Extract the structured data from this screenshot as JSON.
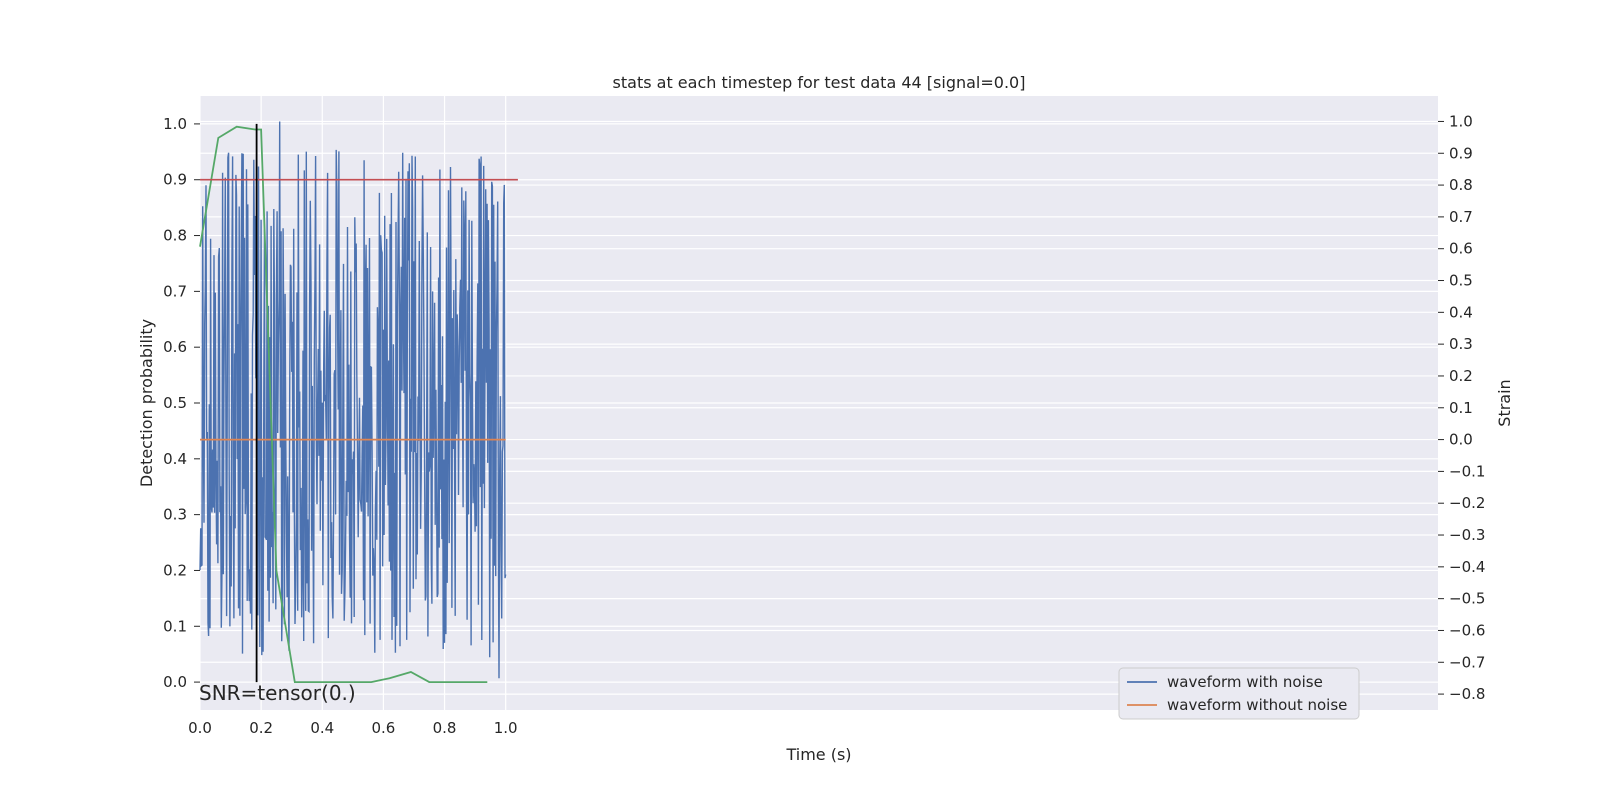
{
  "chart_data": {
    "type": "line",
    "title": "stats at each timestep for test data 44 [signal=0.0]",
    "xlabel": "Time (s)",
    "ylabel_left": "Detection probability",
    "ylabel_right": "Strain",
    "xlim": [
      0.0,
      4.05
    ],
    "ylim_left": [
      -0.05,
      1.05
    ],
    "ylim_right": [
      -0.85,
      1.08
    ],
    "x_ticks": [
      "0.0",
      "0.2",
      "0.4",
      "0.6",
      "0.8",
      "1.0"
    ],
    "x_tick_values": [
      0.0,
      0.2,
      0.4,
      0.6,
      0.8,
      1.0
    ],
    "y_left_ticks": [
      "0.0",
      "0.1",
      "0.2",
      "0.3",
      "0.4",
      "0.5",
      "0.6",
      "0.7",
      "0.8",
      "0.9",
      "1.0"
    ],
    "y_left_tick_values": [
      0.0,
      0.1,
      0.2,
      0.3,
      0.4,
      0.5,
      0.6,
      0.7,
      0.8,
      0.9,
      1.0
    ],
    "y_right_ticks": [
      "−0.8",
      "−0.7",
      "−0.6",
      "−0.5",
      "−0.4",
      "−0.3",
      "−0.2",
      "−0.1",
      "0.0",
      "0.1",
      "0.2",
      "0.3",
      "0.4",
      "0.5",
      "0.6",
      "0.7",
      "0.8",
      "0.9",
      "1.0"
    ],
    "y_right_tick_values": [
      -0.8,
      -0.7,
      -0.6,
      -0.5,
      -0.4,
      -0.3,
      -0.2,
      -0.1,
      0.0,
      0.1,
      0.2,
      0.3,
      0.4,
      0.5,
      0.6,
      0.7,
      0.8,
      0.9,
      1.0
    ],
    "grid": true,
    "legend_position": "bottom-right",
    "annotation": "SNR=tensor(0.)",
    "series": [
      {
        "name": "waveform with noise",
        "axis": "right",
        "color": "#4c72b0",
        "x_range": [
          0.0,
          1.0
        ],
        "y_center": 0.0,
        "y_min": -0.75,
        "y_max": 1.0
      },
      {
        "name": "waveform without noise",
        "axis": "right",
        "color": "#dd8452",
        "x": [
          0.0,
          1.0
        ],
        "y": [
          0.0,
          0.0
        ]
      },
      {
        "axis": "left",
        "color": "#55a868",
        "x": [
          0.0,
          0.06,
          0.12,
          0.18,
          0.2,
          0.25,
          0.31,
          0.37,
          0.44,
          0.5,
          0.56,
          0.62,
          0.69,
          0.75,
          0.81,
          0.87,
          0.94
        ],
        "y": [
          0.78,
          0.975,
          0.995,
          0.99,
          0.99,
          0.2,
          0.0,
          0.0,
          0.0,
          0.0,
          0.0,
          0.007,
          0.018,
          0.0,
          0.0,
          0.0,
          0.0
        ]
      },
      {
        "axis": "left",
        "color": "#c44e52",
        "x": [
          0.0,
          1.04
        ],
        "y": [
          0.9,
          0.9
        ]
      },
      {
        "axis": "left",
        "color": "#000000",
        "x": [
          0.185,
          0.185
        ],
        "y": [
          0.0,
          1.0
        ]
      }
    ]
  }
}
